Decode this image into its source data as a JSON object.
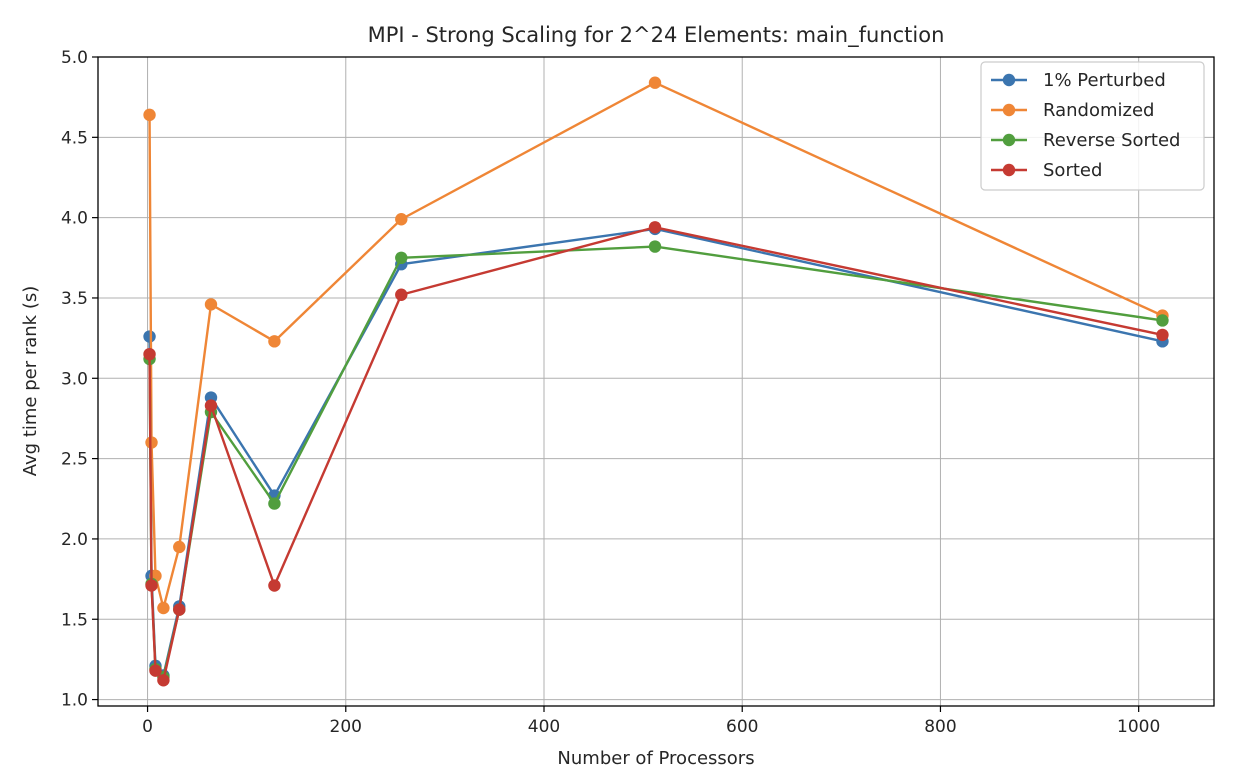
{
  "chart_data": {
    "type": "line",
    "title": "MPI - Strong Scaling for 2^24 Elements: main_function",
    "xlabel": "Number of Processors",
    "ylabel": "Avg time per rank (s)",
    "xlim": [
      -50,
      1076
    ],
    "ylim": [
      0.96,
      5.0
    ],
    "xticks": [
      0,
      200,
      400,
      600,
      800,
      1000
    ],
    "xtick_labels": [
      "0",
      "200",
      "400",
      "600",
      "800",
      "1000"
    ],
    "yticks": [
      1.0,
      1.5,
      2.0,
      2.5,
      3.0,
      3.5,
      4.0,
      4.5,
      5.0
    ],
    "ytick_labels": [
      "1.0",
      "1.5",
      "2.0",
      "2.5",
      "3.0",
      "3.5",
      "4.0",
      "4.5",
      "5.0"
    ],
    "grid": true,
    "legend_position": "top-right",
    "x": [
      2,
      4,
      8,
      16,
      32,
      64,
      128,
      256,
      512,
      1024
    ],
    "series": [
      {
        "name": "1% Perturbed",
        "color": "#3b75af",
        "values": [
          3.26,
          1.77,
          1.21,
          1.15,
          1.58,
          2.88,
          2.27,
          3.71,
          3.93,
          3.23
        ]
      },
      {
        "name": "Randomized",
        "color": "#ef8636",
        "values": [
          4.64,
          2.6,
          1.77,
          1.57,
          1.95,
          3.46,
          3.23,
          3.99,
          4.84,
          3.39
        ]
      },
      {
        "name": "Reverse Sorted",
        "color": "#519e3e",
        "values": [
          3.12,
          1.72,
          1.19,
          1.14,
          1.56,
          2.79,
          2.22,
          3.75,
          3.82,
          3.36
        ]
      },
      {
        "name": "Sorted",
        "color": "#c53a32",
        "values": [
          3.15,
          1.71,
          1.18,
          1.12,
          1.56,
          2.83,
          1.71,
          3.52,
          3.94,
          3.27
        ]
      }
    ]
  }
}
